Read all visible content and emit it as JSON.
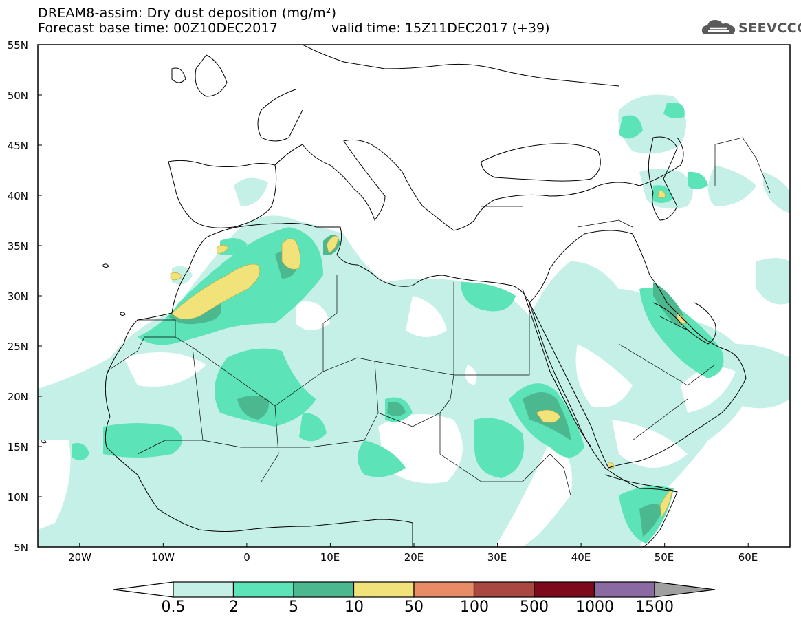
{
  "header": {
    "title_line1": "DREAM8-assim: Dry dust deposition (mg/m²)",
    "title_line2": "Forecast base time: 00Z10DEC2017",
    "valid_time": "valid time: 15Z11DEC2017 (+39)",
    "logo_text": "SEEVCCC"
  },
  "map": {
    "lat_labels": [
      "55N",
      "50N",
      "45N",
      "40N",
      "35N",
      "30N",
      "25N",
      "20N",
      "15N",
      "10N",
      "5N"
    ],
    "lon_labels": [
      "20W",
      "10W",
      "0",
      "10E",
      "20E",
      "30E",
      "40E",
      "50E",
      "60E"
    ],
    "extent": {
      "lon_min": -25,
      "lon_max": 65,
      "lat_min": 5,
      "lat_max": 55
    }
  },
  "colorbar": {
    "labels": [
      "0.5",
      "2",
      "5",
      "10",
      "50",
      "100",
      "500",
      "1000",
      "1500"
    ],
    "colors": [
      "#c4f0e8",
      "#5de3b8",
      "#4cb890",
      "#f1e27a",
      "#e88c68",
      "#a84840",
      "#7c0a1c",
      "#8a6aa0",
      "#a0a0a0"
    ]
  }
}
